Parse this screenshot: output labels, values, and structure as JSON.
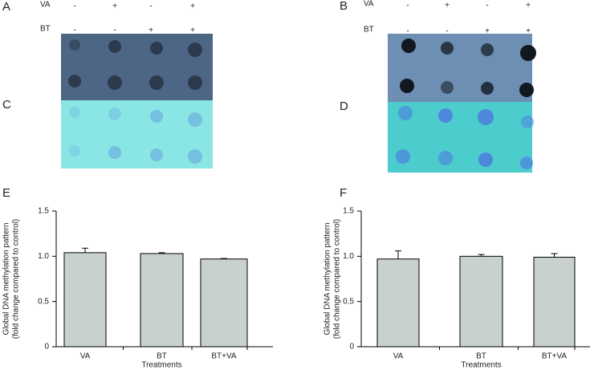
{
  "blots": [
    {
      "label": "A",
      "stain_label": "C",
      "rows": [
        {
          "name": "VA",
          "signs": [
            "-",
            "+",
            "-",
            "+"
          ]
        },
        {
          "name": "BT",
          "signs": [
            "-",
            "-",
            "+",
            "+"
          ]
        }
      ]
    },
    {
      "label": "B",
      "stain_label": "D",
      "rows": [
        {
          "name": "VA",
          "signs": [
            "-",
            "+",
            "-",
            "+"
          ]
        },
        {
          "name": "BT",
          "signs": [
            "-",
            "-",
            "+",
            "+"
          ]
        }
      ]
    }
  ],
  "chart_data": [
    {
      "type": "bar",
      "panel": "E",
      "ylabel": [
        "Global DNA methylation pattern",
        "(fold change compared to control)"
      ],
      "xlabel": "Treatments",
      "categories": [
        "VA",
        "BT",
        "BT+VA"
      ],
      "values": [
        1.04,
        1.03,
        0.97
      ],
      "errors": [
        0.05,
        0.01,
        0.005
      ],
      "color": "#c9d0d0",
      "ylim": [
        0,
        1.5
      ],
      "yticks": [
        0,
        {
          "value": 0.5,
          "label": "0.5"
        },
        {
          "value": 1,
          "label": "1.0"
        },
        {
          "value": 1.5,
          "label": "1.5"
        }
      ]
    },
    {
      "type": "bar",
      "panel": "F",
      "ylabel": [
        "Global DNA methylation pattern",
        "(fold change compared to control)"
      ],
      "xlabel": "Treatments",
      "categories": [
        "VA",
        "BT",
        "BT+VA"
      ],
      "values": [
        0.97,
        1.0,
        0.99
      ],
      "errors": [
        0.09,
        0.02,
        0.04
      ],
      "color": "#c9d0d0",
      "ylim": [
        0,
        1.5
      ],
      "yticks": [
        0,
        {
          "value": 0.5,
          "label": "0.5"
        },
        {
          "value": 1,
          "label": "1.0"
        },
        {
          "value": 1.5,
          "label": "1.5"
        }
      ]
    }
  ]
}
